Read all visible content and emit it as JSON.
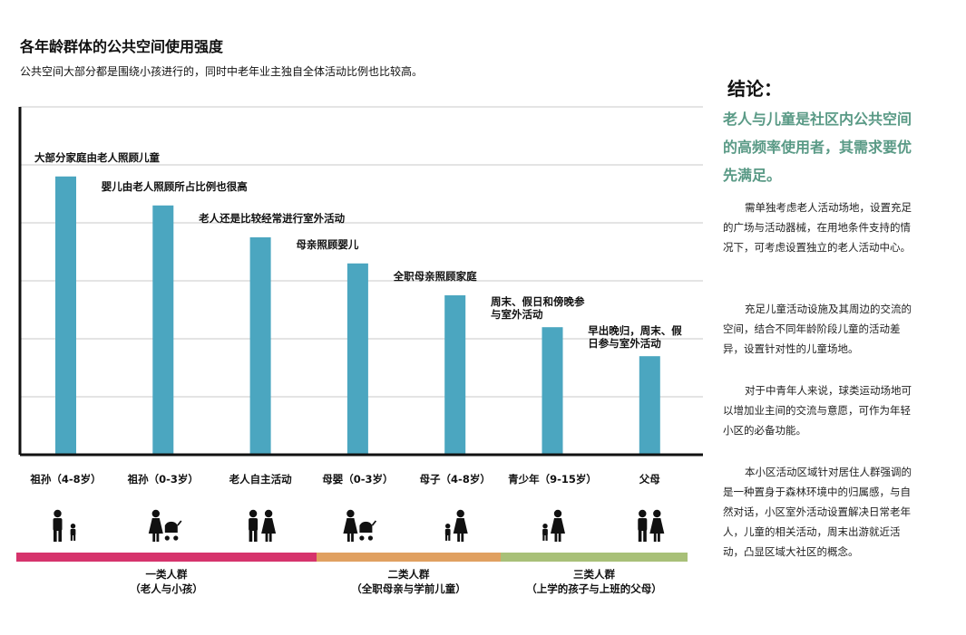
{
  "header": {
    "title": "各年龄群体的公共空间使用强度",
    "subtitle": "公共空间大部分都是围绕小孩进行的，同时中老年业主独自全体活动比例也比较高。"
  },
  "chart_data": {
    "type": "bar",
    "title": "各年龄群体的公共空间使用强度",
    "categories": [
      "祖孙（4-8岁）",
      "祖孙（0-3岁）",
      "老人自主活动",
      "母婴（0-3岁）",
      "母子（4-8岁）",
      "青少年（9-15岁）",
      "父母"
    ],
    "values": [
      9.6,
      8.6,
      7.5,
      6.6,
      5.5,
      4.4,
      3.4
    ],
    "ylim": [
      0,
      12
    ],
    "grid": true,
    "y_tick_labels_shown": false,
    "annotations": [
      [
        "大部分家庭由老人照顾儿童"
      ],
      [
        "婴儿由老人照顾所占比例也很高"
      ],
      [
        "老人还是比较经常进行室外活动"
      ],
      [
        "母亲照顾婴儿"
      ],
      [
        "全职母亲照顾家庭"
      ],
      [
        "周末、假日和傍晚参",
        "与室外活动"
      ],
      [
        "早出晚归，周末、假",
        "日参与室外活动"
      ]
    ],
    "bar_color": "#4ba6c0",
    "groups": [
      {
        "name": "一类人群",
        "desc": "（老人与小孩）",
        "color": "#d6336c"
      },
      {
        "name": "二类人群",
        "desc": "（全职母亲与学前儿童）",
        "color": "#e0a060"
      },
      {
        "name": "三类人群",
        "desc": "（上学的孩子与上班的父母）",
        "color": "#a8c078"
      }
    ]
  },
  "icons": [
    "grandparent-child-icon",
    "grandparent-stroller-icon",
    "elderly-couple-icon",
    "mother-stroller-icon",
    "mother-child-icon",
    "teen-adult-icon",
    "parents-icon"
  ],
  "conclusion": {
    "title": "结论：",
    "highlight": "老人与儿童是社区内公共空间的高频率使用者，其需求要优先满足。",
    "paragraphs": [
      "需单独考虑老人活动场地，设置充足的广场与活动器械，在用地条件支持的情况下，可考虑设置独立的老人活动中心。",
      "充足儿童活动设施及其周边的交流的空间，结合不同年龄阶段儿童的活动差异，设置针对性的儿童场地。",
      "对于中青年人来说，球类运动场地可以增加业主间的交流与意愿，可作为年轻小区的必备功能。",
      "本小区活动区域针对居住人群强调的是一种置身于森林环境中的归属感，与自然对话，小区室外活动设置解决日常老年人，儿童的相关活动，周末出游就近活动，凸显区域大社区的概念。"
    ]
  }
}
